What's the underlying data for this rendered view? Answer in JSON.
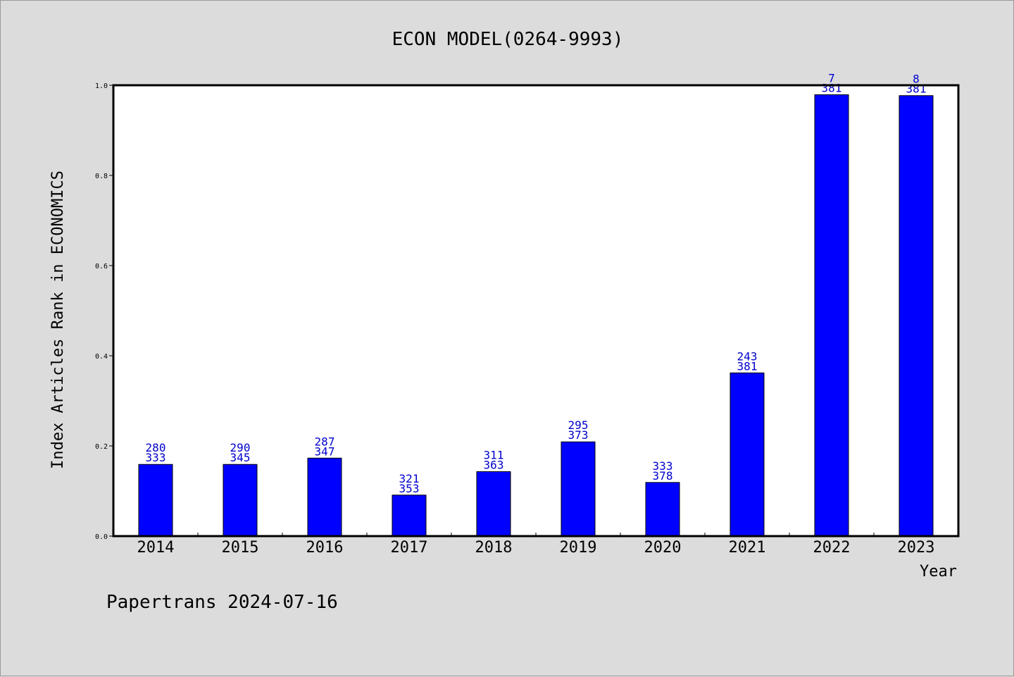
{
  "chart_data": {
    "type": "bar",
    "title": "ECON MODEL(0264-9993)",
    "xlabel": "Year",
    "ylabel": "Index Articles Rank in ECONOMICS",
    "categories": [
      "2014",
      "2015",
      "2016",
      "2017",
      "2018",
      "2019",
      "2020",
      "2021",
      "2022",
      "2023"
    ],
    "values": [
      0.159,
      0.159,
      0.173,
      0.091,
      0.143,
      0.209,
      0.119,
      0.362,
      0.979,
      0.977
    ],
    "labels_top": [
      "280",
      "290",
      "287",
      "321",
      "311",
      "295",
      "333",
      "243",
      "7",
      "8"
    ],
    "labels_bottom": [
      "333",
      "345",
      "347",
      "353",
      "363",
      "373",
      "378",
      "381",
      "381",
      "381"
    ],
    "ylim": [
      0,
      1.0
    ],
    "yticks": [
      "0.0",
      "0.2",
      "0.4",
      "0.6",
      "0.8",
      "1.0"
    ],
    "bar_color": "#0000ff",
    "label_color": "#0000cc",
    "grid": false
  },
  "footer": "Papertrans 2024-07-16"
}
